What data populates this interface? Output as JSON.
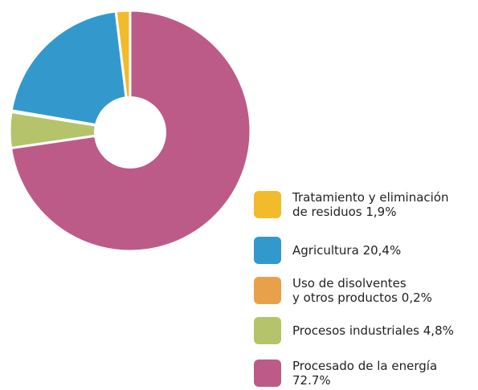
{
  "chart_data": {
    "type": "donut",
    "categories": [
      "Tratamiento y eliminación\nde residuos",
      "Agricultura",
      "Uso de disolventes\ny otros productos",
      "Procesos industriales",
      "Procesado de la energía"
    ],
    "values": [
      1.9,
      20.4,
      0.2,
      4.8,
      72.7
    ],
    "value_labels": [
      "1,9%",
      "20,4%",
      "0,2%",
      "4,8%",
      "72.7%"
    ],
    "colors": [
      "#f2bb2c",
      "#3399cc",
      "#e9a04b",
      "#b5c46a",
      "#bd5b88"
    ],
    "legend": "right"
  }
}
